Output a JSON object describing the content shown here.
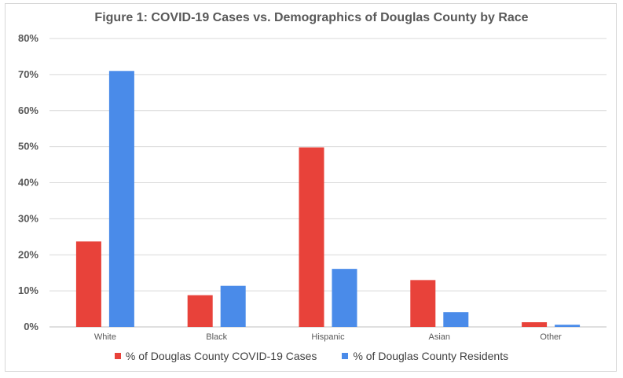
{
  "chart_data": {
    "type": "bar",
    "title": "Figure 1: COVID-19 Cases vs. Demographics of Douglas County by Race",
    "xlabel": "",
    "ylabel": "",
    "ylim": [
      0,
      80
    ],
    "yticks": [
      "0%",
      "10%",
      "20%",
      "30%",
      "40%",
      "50%",
      "60%",
      "70%",
      "80%"
    ],
    "categories": [
      "White",
      "Black",
      "Hispanic",
      "Asian",
      "Other"
    ],
    "series": [
      {
        "name": "% of Douglas County COVID-19 Cases",
        "color": "#e8423a",
        "values": [
          23.7,
          8.8,
          49.8,
          13.0,
          1.3
        ]
      },
      {
        "name": "% of Douglas County Residents",
        "color": "#4a8be9",
        "values": [
          71.0,
          11.4,
          16.1,
          4.1,
          0.6
        ]
      }
    ],
    "grid": true,
    "legend_position": "bottom"
  }
}
